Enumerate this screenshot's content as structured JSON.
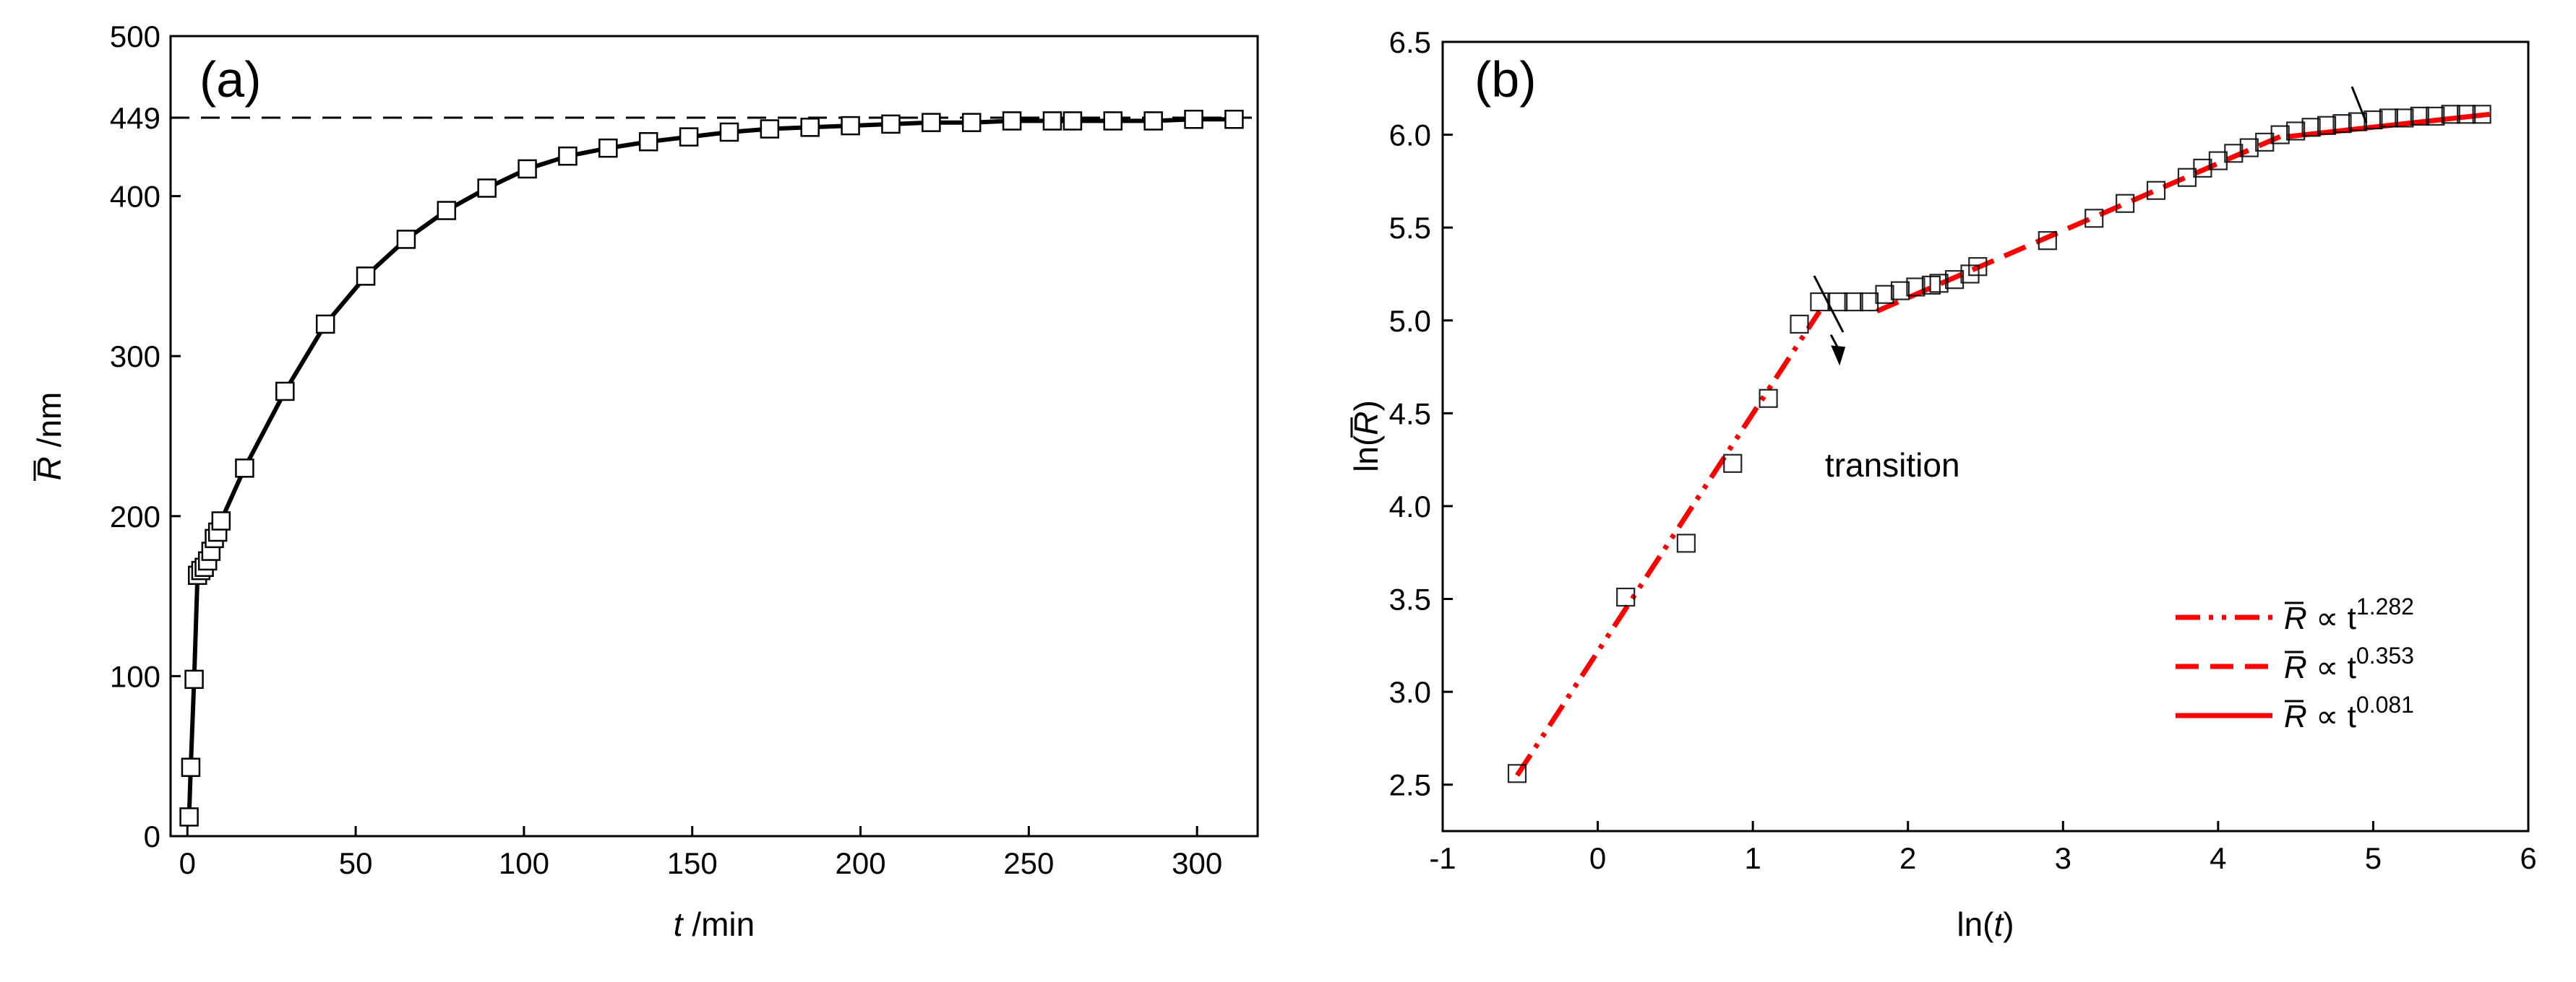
{
  "chart_data": [
    {
      "type": "line",
      "panel_label": "(a)",
      "xlabel": "t /min",
      "xlabel_var": "t",
      "xlabel_unit": " /min",
      "ylabel": "R̄ /nm",
      "ylabel_var": "R",
      "ylabel_unit": " /nm",
      "xlim": [
        -5,
        318
      ],
      "ylim": [
        0,
        500
      ],
      "xticks": [
        0,
        50,
        100,
        150,
        200,
        250,
        300
      ],
      "yticks": [
        0,
        100,
        200,
        300,
        400,
        449,
        500
      ],
      "reference_line": {
        "y": 449,
        "style": "dashed"
      },
      "series": [
        {
          "marker": "open-square",
          "line": "solid",
          "points": [
            [
              0.5,
              12
            ],
            [
              1,
              43
            ],
            [
              2,
              98
            ],
            [
              3,
              163
            ],
            [
              4,
              166
            ],
            [
              5,
              168
            ],
            [
              6,
              172
            ],
            [
              7,
              178
            ],
            [
              8,
              186
            ],
            [
              9,
              190
            ],
            [
              10,
              197
            ],
            [
              17,
              230
            ],
            [
              29,
              278
            ],
            [
              41,
              320
            ],
            [
              53,
              350
            ],
            [
              65,
              373
            ],
            [
              77,
              391
            ],
            [
              89,
              405
            ],
            [
              101,
              417
            ],
            [
              113,
              425
            ],
            [
              125,
              430
            ],
            [
              137,
              434
            ],
            [
              149,
              437
            ],
            [
              161,
              440
            ],
            [
              173,
              442
            ],
            [
              185,
              443
            ],
            [
              197,
              444
            ],
            [
              209,
              445
            ],
            [
              221,
              446
            ],
            [
              233,
              446
            ],
            [
              245,
              447
            ],
            [
              257,
              447
            ],
            [
              263,
              447
            ],
            [
              275,
              447
            ],
            [
              287,
              447
            ],
            [
              299,
              448
            ],
            [
              311,
              448
            ]
          ]
        }
      ]
    },
    {
      "type": "scatter",
      "panel_label": "(b)",
      "xlabel": "ln(t)",
      "xlabel_pre": "ln(",
      "xlabel_var": "t",
      "xlabel_post": ")",
      "ylabel": "ln(R̄)",
      "ylabel_pre": "ln(",
      "ylabel_var": "R",
      "ylabel_post": ")",
      "xlim": [
        -1,
        6
      ],
      "ylim": [
        2.25,
        6.5
      ],
      "xticks": [
        -1,
        0,
        1,
        2,
        3,
        4,
        5,
        6
      ],
      "yticks": [
        2.5,
        3.0,
        3.5,
        4.0,
        4.5,
        5.0,
        5.5,
        6.0,
        6.5
      ],
      "points": [
        [
          -0.52,
          2.56
        ],
        [
          0.18,
          3.51
        ],
        [
          0.57,
          3.8
        ],
        [
          0.87,
          4.23
        ],
        [
          1.1,
          4.58
        ],
        [
          1.3,
          4.98
        ],
        [
          1.43,
          5.1
        ],
        [
          1.55,
          5.1
        ],
        [
          1.65,
          5.1
        ],
        [
          1.75,
          5.1
        ],
        [
          1.85,
          5.14
        ],
        [
          1.95,
          5.16
        ],
        [
          2.05,
          5.18
        ],
        [
          2.15,
          5.19
        ],
        [
          2.2,
          5.2
        ],
        [
          2.3,
          5.22
        ],
        [
          2.4,
          5.25
        ],
        [
          2.45,
          5.29
        ],
        [
          2.9,
          5.43
        ],
        [
          3.2,
          5.55
        ],
        [
          3.4,
          5.63
        ],
        [
          3.6,
          5.7
        ],
        [
          3.8,
          5.77
        ],
        [
          3.9,
          5.82
        ],
        [
          4.0,
          5.86
        ],
        [
          4.1,
          5.9
        ],
        [
          4.2,
          5.93
        ],
        [
          4.3,
          5.96
        ],
        [
          4.4,
          6.0
        ],
        [
          4.5,
          6.02
        ],
        [
          4.6,
          6.04
        ],
        [
          4.7,
          6.05
        ],
        [
          4.8,
          6.06
        ],
        [
          4.9,
          6.07
        ],
        [
          5.0,
          6.08
        ],
        [
          5.1,
          6.09
        ],
        [
          5.2,
          6.09
        ],
        [
          5.3,
          6.1
        ],
        [
          5.4,
          6.1
        ],
        [
          5.5,
          6.11
        ],
        [
          5.6,
          6.11
        ],
        [
          5.7,
          6.11
        ]
      ],
      "fits": [
        {
          "name": "R̄ ∝ t1.282",
          "exponent": "1.282",
          "style": "dash-dot-dot",
          "color": "#ff0000",
          "x_range": [
            -0.52,
            1.43
          ],
          "y_at_start": 2.55,
          "y_at_end": 5.05
        },
        {
          "name": "R̄ ∝ t0.353",
          "exponent": "0.353",
          "style": "dashed",
          "color": "#ff0000",
          "x_range": [
            1.8,
            4.4
          ],
          "y_at_start": 5.05,
          "y_at_end": 5.99
        },
        {
          "name": "R̄ ∝ t0.081",
          "exponent": "0.081",
          "style": "solid",
          "color": "#ff0000",
          "x_range": [
            4.45,
            5.75
          ],
          "y_at_start": 5.99,
          "y_at_end": 6.11
        }
      ],
      "annotation": {
        "text": "transition",
        "arrow_tip": [
          1.55,
          4.78
        ],
        "text_at": [
          1.9,
          4.16
        ]
      },
      "legend": {
        "placement": "bottom-right",
        "symbol": "R",
        "prop": " ∝ t",
        "entries": [
          "1.282",
          "0.353",
          "0.081"
        ]
      }
    }
  ]
}
